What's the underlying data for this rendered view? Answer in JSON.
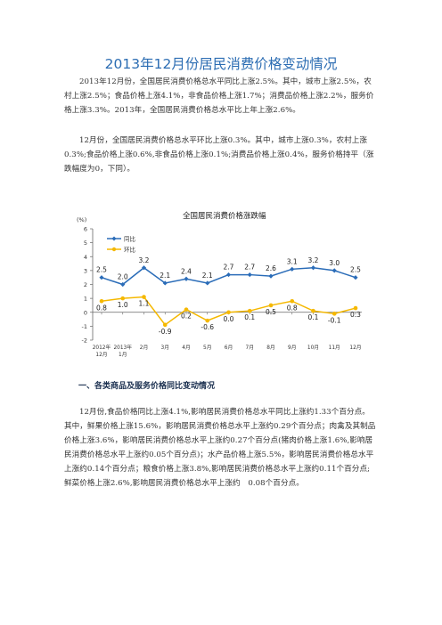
{
  "document": {
    "title": "2013年12月份居民消费价格变动情况",
    "paragraphs": [
      "2013年12月份，全国居民消费价格总水平同比上涨2.5%。其中，城市上涨2.5%，农村上涨2.5%；食品价格上涨4.1%，非食品价格上涨1.7%；消费品价格上涨2.2%，服务价格上涨3.3%。2013年，全国居民消费价格总水平比上年上涨2.6%。",
      "12月份，全国居民消费价格总水平环比上涨0.3%。其中，城市上涨0.3%，农村上涨0.3%;食品价格上涨0.6%,非食品价格上涨0.1%;消费品价格上涨0.4%，服务价格持平（涨跌幅度为0，下同）。"
    ],
    "section_heading": "一、各类商品及服务价格同比变动情况",
    "section_paragraph": "12月份,食品价格同比上涨4.1%,影响居民消费价格总水平同比上涨约1.33个百分点。其中，鲜果价格上涨15.6%，影响居民消费价格总水平上涨约0.29个百分点；肉禽及其制品价格上涨3.6%，影响居民消费价格总水平上涨约0.27个百分点(猪肉价格上涨1.6%,影响居民消费价格总水平上涨约0.05个百分点)；水产品价格上涨5.5%，影响居民消费价格总水平上涨约0.14个百分点；粮食价格上涨3.8%,影响居民消费价格总水平上涨约0.11个百分点;鲜菜价格上涨2.6%,影响居民消费价格总水平上涨约　0.08个百分点。"
  },
  "chart_data": {
    "type": "line",
    "title": "全国居民消费价格涨跌幅",
    "ylabel": "(%)",
    "ylim": [
      -2,
      6
    ],
    "yticks": [
      -2,
      -1,
      0,
      1,
      2,
      3,
      4,
      5,
      6
    ],
    "categories": [
      [
        "2012年",
        "12月"
      ],
      [
        "2013年",
        "1月"
      ],
      [
        "2月"
      ],
      [
        "3月"
      ],
      [
        "4月"
      ],
      [
        "5月"
      ],
      [
        "6月"
      ],
      [
        "7月"
      ],
      [
        "8月"
      ],
      [
        "9月"
      ],
      [
        "10月"
      ],
      [
        "11月"
      ],
      [
        "12月"
      ]
    ],
    "series": [
      {
        "name": "同比",
        "color": "#2a6cb8",
        "marker": "diamond",
        "values": [
          2.5,
          2.0,
          3.2,
          2.1,
          2.4,
          2.1,
          2.7,
          2.7,
          2.6,
          3.1,
          3.2,
          3.0,
          2.5
        ],
        "labels": [
          "2.5",
          "2.0",
          "3.2",
          "2.1",
          "2.4",
          "2.1",
          "2.7",
          "2.7",
          "2.6",
          "3.1",
          "3.2",
          "3.0",
          "2.5"
        ]
      },
      {
        "name": "环比",
        "color": "#f5b800",
        "marker": "circle",
        "values": [
          0.8,
          1.0,
          1.1,
          -0.9,
          0.2,
          -0.6,
          0.0,
          0.1,
          0.5,
          0.8,
          0.1,
          -0.1,
          0.3
        ],
        "labels": [
          "0.8",
          "1.0",
          "1.1",
          "-0.9",
          "0.2",
          "-0.6",
          "0.0",
          "0.1",
          "0.5",
          "0.8",
          "0.1",
          "-0.1",
          "0.3"
        ]
      }
    ],
    "legend_position": "top-left",
    "grid": false
  }
}
